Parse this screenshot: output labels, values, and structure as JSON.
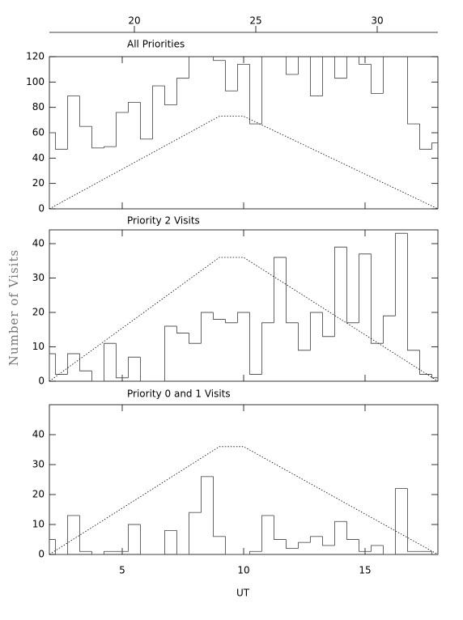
{
  "y_label": "Number of Visits",
  "x_label": "UT",
  "chart_data": [
    {
      "type": "histogram",
      "title": "All Priorities",
      "bins": [
        2.0,
        2.25,
        2.75,
        3.25,
        3.75,
        4.25,
        4.75,
        5.25,
        5.75,
        6.25,
        6.75,
        7.25,
        7.75,
        8.25,
        8.75,
        9.25,
        9.75,
        10.25,
        10.75,
        11.25,
        11.75,
        12.25,
        12.75,
        13.25,
        13.75,
        14.25,
        14.75,
        15.25,
        15.75,
        16.25,
        16.75,
        17.25,
        17.75,
        18.0
      ],
      "values": [
        60,
        47,
        89,
        65,
        48,
        49,
        76,
        84,
        55,
        97,
        82,
        103,
        125,
        125,
        117,
        93,
        114,
        67,
        125,
        125,
        106,
        125,
        89,
        125,
        103,
        125,
        114,
        91,
        125,
        125,
        67,
        47,
        52
      ],
      "curve": {
        "x": [
          2,
          9,
          10,
          18
        ],
        "values": [
          0,
          73,
          73,
          0
        ]
      },
      "xlim": [
        2,
        18
      ],
      "xticks": [
        5,
        10,
        15
      ],
      "ylim": [
        0,
        120
      ],
      "yticks": [
        0,
        20,
        40,
        60,
        80,
        100,
        120
      ],
      "top_xlim": [
        16.5,
        32.5
      ],
      "top_xticks": [
        20,
        25,
        30
      ]
    },
    {
      "type": "histogram",
      "title": "Priority 2 Visits",
      "bins": [
        2.0,
        2.25,
        2.75,
        3.25,
        3.75,
        4.25,
        4.75,
        5.25,
        5.75,
        6.25,
        6.75,
        7.25,
        7.75,
        8.25,
        8.75,
        9.25,
        9.75,
        10.25,
        10.75,
        11.25,
        11.75,
        12.25,
        12.75,
        13.25,
        13.75,
        14.25,
        14.75,
        15.25,
        15.75,
        16.25,
        16.75,
        17.25,
        17.75,
        18.0
      ],
      "values": [
        8,
        2,
        8,
        3,
        0,
        11,
        1,
        7,
        0,
        0,
        16,
        14,
        11,
        20,
        18,
        17,
        20,
        2,
        17,
        36,
        17,
        9,
        20,
        13,
        39,
        17,
        37,
        11,
        19,
        43,
        9,
        2,
        1
      ],
      "curve": {
        "x": [
          2,
          9,
          10,
          18
        ],
        "values": [
          0,
          36,
          36,
          0
        ]
      },
      "xlim": [
        2,
        18
      ],
      "xticks": [
        5,
        10,
        15
      ],
      "ylim": [
        0,
        44
      ],
      "yticks": [
        0,
        10,
        20,
        30,
        40
      ]
    },
    {
      "type": "histogram",
      "title": "Priority 0 and 1 Visits",
      "bins": [
        2.0,
        2.25,
        2.75,
        3.25,
        3.75,
        4.25,
        4.75,
        5.25,
        5.75,
        6.25,
        6.75,
        7.25,
        7.75,
        8.25,
        8.75,
        9.25,
        9.75,
        10.25,
        10.75,
        11.25,
        11.75,
        12.25,
        12.75,
        13.25,
        13.75,
        14.25,
        14.75,
        15.25,
        15.75,
        16.25,
        16.75,
        17.25,
        17.75,
        18.0
      ],
      "values": [
        5,
        0,
        13,
        1,
        0,
        1,
        1,
        10,
        0,
        0,
        8,
        0,
        14,
        26,
        6,
        0,
        0,
        1,
        13,
        5,
        2,
        4,
        6,
        3,
        11,
        5,
        1,
        3,
        0,
        22,
        1,
        1,
        0
      ],
      "curve": {
        "x": [
          2,
          9,
          10,
          18
        ],
        "values": [
          0,
          36,
          36,
          0
        ]
      },
      "xlim": [
        2,
        18
      ],
      "xticks": [
        5,
        10,
        15
      ],
      "ylim": [
        0,
        50
      ],
      "yticks": [
        0,
        10,
        20,
        30,
        40
      ]
    }
  ]
}
